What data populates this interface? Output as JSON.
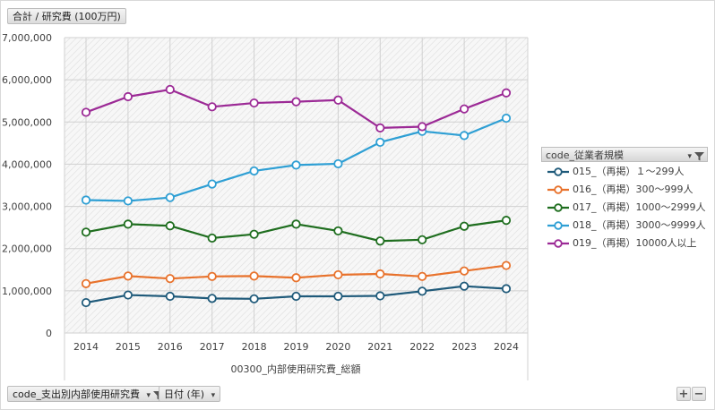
{
  "value_field": "合計 / 研究費 (100万円)",
  "filter_field": "code_支出別内部使用研究費",
  "date_field": "日付 (年)",
  "legend_title": "code_従業者規模",
  "zoom": {
    "in": "+",
    "out": "−"
  },
  "chart_data": {
    "type": "line",
    "title": "",
    "xlabel": "00300_内部使用研究費_総額",
    "ylabel": "",
    "categories": [
      "2014",
      "2015",
      "2016",
      "2017",
      "2018",
      "2019",
      "2020",
      "2021",
      "2022",
      "2023",
      "2024"
    ],
    "y_ticks": [
      "0",
      "1,000,000",
      "2,000,000",
      "3,000,000",
      "4,000,000",
      "5,000,000",
      "6,000,000",
      "7,000,000"
    ],
    "ylim": [
      0,
      7000000
    ],
    "grid": true,
    "legend_position": "right",
    "series": [
      {
        "name": "015_（再掲）１～299人",
        "color": "#1f5a7a",
        "values": [
          720000,
          900000,
          870000,
          820000,
          810000,
          870000,
          870000,
          880000,
          990000,
          1110000,
          1050000
        ]
      },
      {
        "name": "016_（再掲）300～999人",
        "color": "#e8722c",
        "values": [
          1170000,
          1350000,
          1290000,
          1340000,
          1350000,
          1310000,
          1380000,
          1400000,
          1340000,
          1470000,
          1600000
        ]
      },
      {
        "name": "017_（再掲）1000～2999人",
        "color": "#1f6e1f",
        "values": [
          2390000,
          2580000,
          2540000,
          2250000,
          2340000,
          2580000,
          2420000,
          2180000,
          2210000,
          2530000,
          2670000
        ]
      },
      {
        "name": "018_（再掲）3000～9999人",
        "color": "#2e9fd4",
        "values": [
          3150000,
          3130000,
          3210000,
          3530000,
          3840000,
          3980000,
          4010000,
          4520000,
          4780000,
          4680000,
          5090000
        ]
      },
      {
        "name": "019_（再掲）10000人以上",
        "color": "#9c2a96",
        "values": [
          5230000,
          5600000,
          5770000,
          5360000,
          5450000,
          5480000,
          5520000,
          4860000,
          4890000,
          5310000,
          5690000
        ]
      }
    ]
  }
}
